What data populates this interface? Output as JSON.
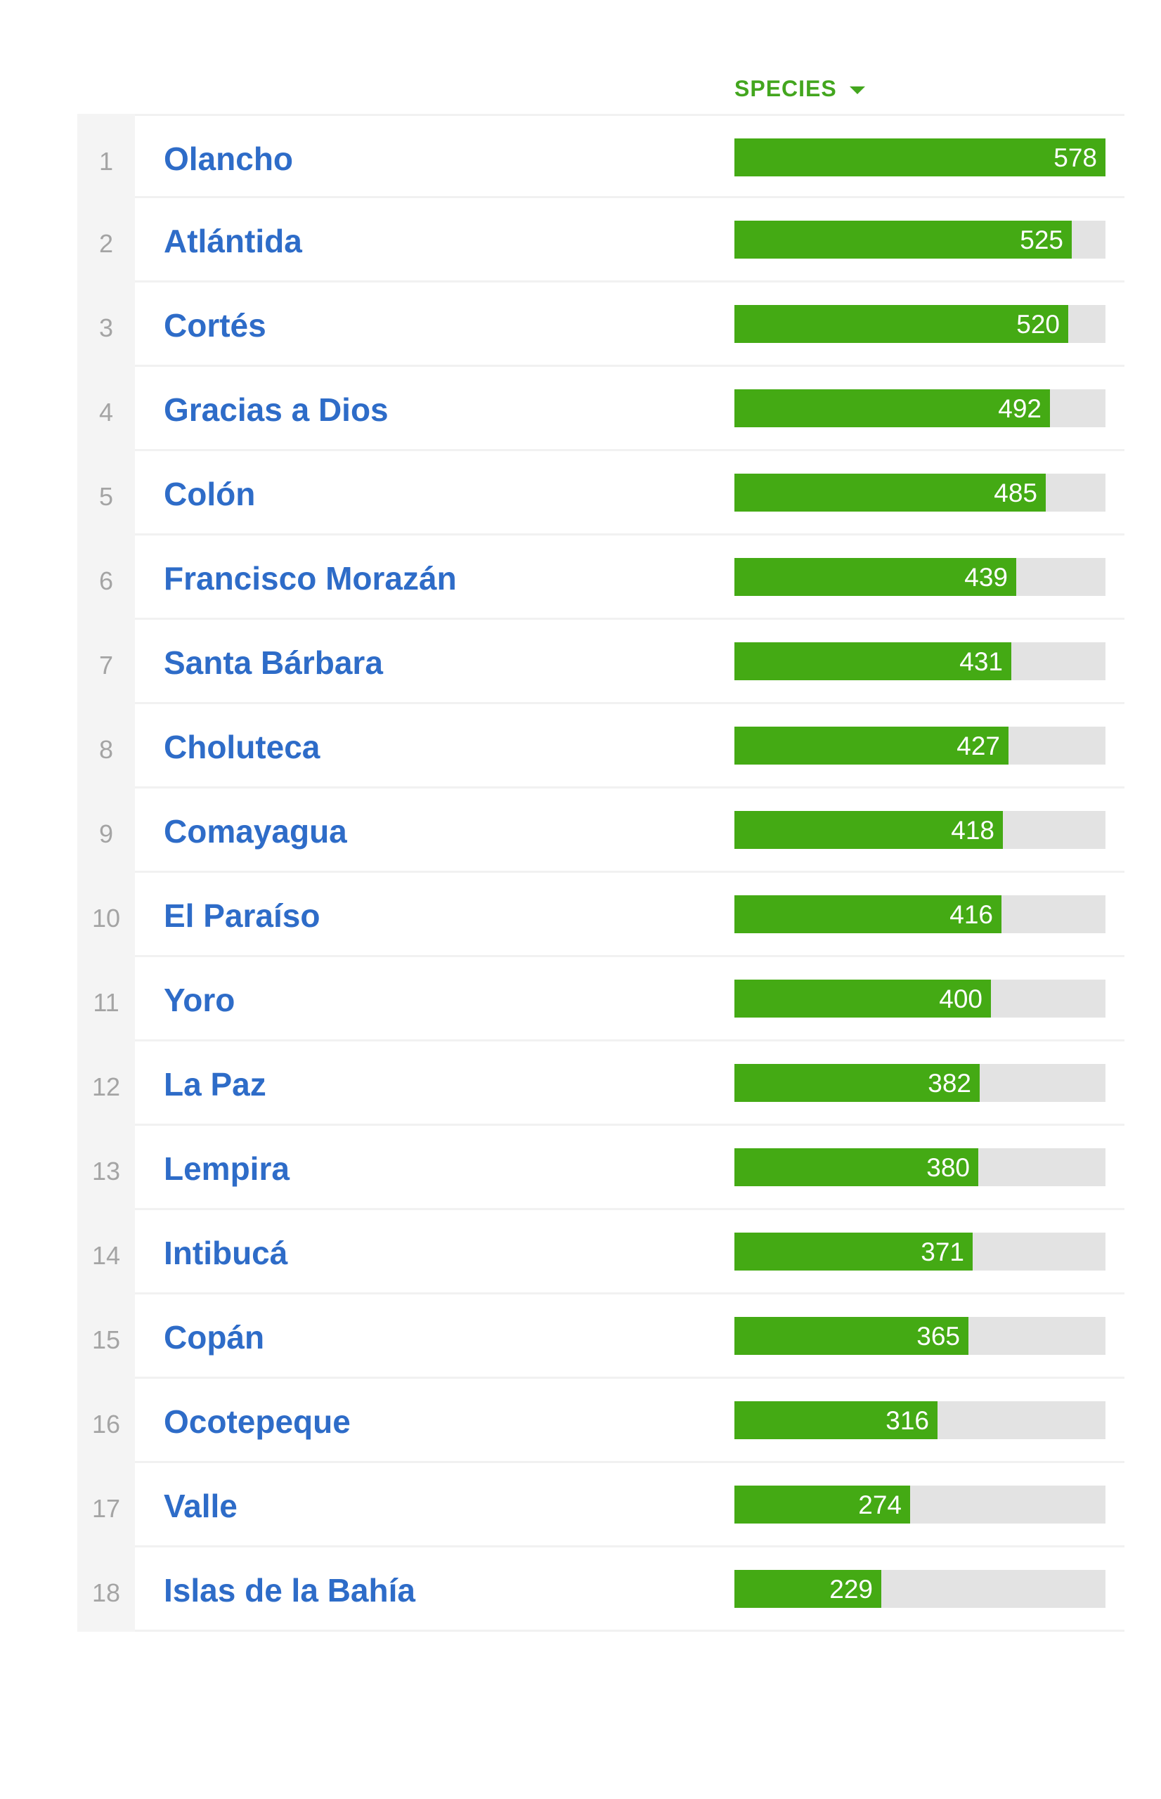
{
  "table": {
    "sort_column_label": "SPECIES",
    "sort_direction_icon": "caret-down-icon",
    "max_value": 578,
    "colors": {
      "header": "#43a61e",
      "bar": "#44aa14",
      "track": "#e3e3e3",
      "link": "#2e6cc8",
      "rank": "#a4a4a4"
    },
    "rows": [
      {
        "rank": "1",
        "name": "Olancho",
        "species": 578
      },
      {
        "rank": "2",
        "name": "Atlántida",
        "species": 525
      },
      {
        "rank": "3",
        "name": "Cortés",
        "species": 520
      },
      {
        "rank": "4",
        "name": "Gracias a Dios",
        "species": 492
      },
      {
        "rank": "5",
        "name": "Colón",
        "species": 485
      },
      {
        "rank": "6",
        "name": "Francisco Morazán",
        "species": 439
      },
      {
        "rank": "7",
        "name": "Santa Bárbara",
        "species": 431
      },
      {
        "rank": "8",
        "name": "Choluteca",
        "species": 427
      },
      {
        "rank": "9",
        "name": "Comayagua",
        "species": 418
      },
      {
        "rank": "10",
        "name": "El Paraíso",
        "species": 416
      },
      {
        "rank": "11",
        "name": "Yoro",
        "species": 400
      },
      {
        "rank": "12",
        "name": "La Paz",
        "species": 382
      },
      {
        "rank": "13",
        "name": "Lempira",
        "species": 380
      },
      {
        "rank": "14",
        "name": "Intibucá",
        "species": 371
      },
      {
        "rank": "15",
        "name": "Copán",
        "species": 365
      },
      {
        "rank": "16",
        "name": "Ocotepeque",
        "species": 316
      },
      {
        "rank": "17",
        "name": "Valle",
        "species": 274
      },
      {
        "rank": "18",
        "name": "Islas de la Bahía",
        "species": 229
      }
    ]
  }
}
